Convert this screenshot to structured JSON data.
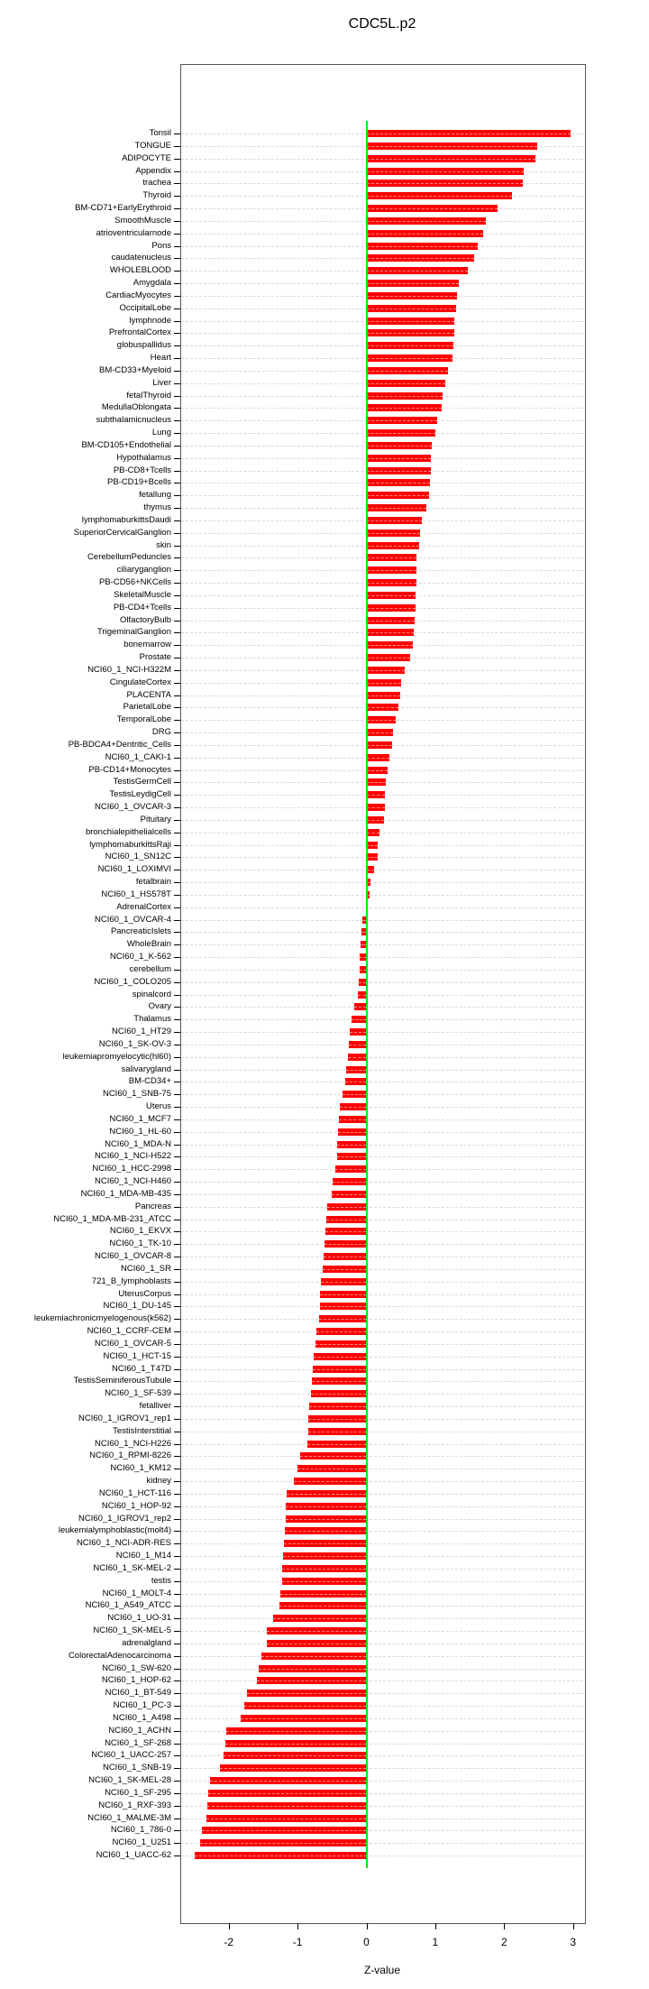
{
  "chart_data": {
    "type": "bar",
    "orientation": "horizontal",
    "title": "CDC5L.p2",
    "xlabel": "Z-value",
    "ylabel": "",
    "xlim": [
      -2.6,
      3.1
    ],
    "xticks": [
      -2,
      -1,
      0,
      1,
      2,
      3
    ],
    "grid": "dashed-horizontal-per-row",
    "legend": "none",
    "bar_color": "#ff0000",
    "zero_line_color": "#00ee00",
    "grid_color": "#d9d9d9",
    "box_color": "#555555",
    "text_color": "#000000",
    "categories": [
      "Tonsil",
      "TONGUE",
      "ADIPOCYTE",
      "Appendix",
      "trachea",
      "Thyroid",
      "BM-CD71+EarlyErythroid",
      "SmoothMuscle",
      "atrioventricularnode",
      "Pons",
      "caudatenucleus",
      "WHOLEBLOOD",
      "Amygdala",
      "CardiacMyocytes",
      "OccipitalLobe",
      "lymphnode",
      "PrefrontalCortex",
      "globuspallidus",
      "Heart",
      "BM-CD33+Myeloid",
      "Liver",
      "fetalThyroid",
      "MedullaOblongata",
      "subthalamicnucleus",
      "Lung",
      "BM-CD105+Endothelial",
      "Hypothalamus",
      "PB-CD8+Tcells",
      "PB-CD19+Bcells",
      "fetallung",
      "thymus",
      "lymphomaburkittsDaudi",
      "SuperiorCervicalGanglion",
      "skin",
      "CerebellumPeduncles",
      "ciliaryganglion",
      "PB-CD56+NKCells",
      "SkeletalMuscle",
      "PB-CD4+Tcells",
      "OlfactoryBulb",
      "TrigeminalGanglion",
      "bonemarrow",
      "Prostate",
      "NCI60_1_NCI-H322M",
      "CingulateCortex",
      "PLACENTA",
      "ParietalLobe",
      "TemporalLobe",
      "DRG",
      "PB-BDCA4+Dentritic_Cells",
      "NCI60_1_CAKI-1",
      "PB-CD14+Monocytes",
      "TestisGermCell",
      "TestisLeydigCell",
      "NCI60_1_OVCAR-3",
      "Pituitary",
      "bronchialepithelialcells",
      "lymphomaburkittsRaji",
      "NCI60_1_SN12C",
      "NCI60_1_LOXIMVI",
      "fetalbrain",
      "NCI60_1_HS578T",
      "AdrenalCortex",
      "NCI60_1_OVCAR-4",
      "PancreaticIslets",
      "WholeBrain",
      "NCI60_1_K-562",
      "cerebellum",
      "NCI60_1_COLO205",
      "spinalcord",
      "Ovary",
      "Thalamus",
      "NCI60_1_HT29",
      "NCI60_1_SK-OV-3",
      "leukemiapromyelocytic(hl60)",
      "salivarygland",
      "BM-CD34+",
      "NCI60_1_SNB-75",
      "Uterus",
      "NCI60_1_MCF7",
      "NCI60_1_HL-60",
      "NCI60_1_MDA-N",
      "NCI60_1_NCI-H522",
      "NCI60_1_HCC-2998",
      "NCI60_1_NCI-H460",
      "NCI60_1_MDA-MB-435",
      "Pancreas",
      "NCI60_1_MDA-MB-231_ATCC",
      "NCI60_1_EKVX",
      "NCI60_1_TK-10",
      "NCI60_1_OVCAR-8",
      "NCI60_1_SR",
      "721_B_lymphoblasts",
      "UterusCorpus",
      "NCI60_1_DU-145",
      "leukemiachronicmyelogenous(k562)",
      "NCI60_1_CCRF-CEM",
      "NCI60_1_OVCAR-5",
      "NCI60_1_HCT-15",
      "NCI60_1_T47D",
      "TestisSeminiferousTubule",
      "NCI60_1_SF-539",
      "fetalliver",
      "NCI60_1_IGROV1_rep1",
      "TestisInterstitial",
      "NCI60_1_NCI-H226",
      "NCI60_1_RPMI-8226",
      "NCI60_1_KM12",
      "kidney",
      "NCI60_1_HCT-116",
      "NCI60_1_HOP-92",
      "NCI60_1_IGROV1_rep2",
      "leukemialymphoblastic(molt4)",
      "NCI60_1_NCI-ADR-RES",
      "NCI60_1_M14",
      "NCI60_1_SK-MEL-2",
      "testis",
      "NCI60_1_MOLT-4",
      "NCI60_1_A549_ATCC",
      "NCI60_1_UO-31",
      "NCI60_1_SK-MEL-5",
      "adrenalgland",
      "ColorectalAdenocarcinoma",
      "NCI60_1_SW-620",
      "NCI60_1_HOP-62",
      "NCI60_1_BT-549",
      "NCI60_1_PC-3",
      "NCI60_1_A498",
      "NCI60_1_ACHN",
      "NCI60_1_SF-268",
      "NCI60_1_UACC-257",
      "NCI60_1_SNB-19",
      "NCI60_1_SK-MEL-28",
      "NCI60_1_SF-295",
      "NCI60_1_RXF-393",
      "NCI60_1_MALME-3M",
      "NCI60_1_786-0",
      "NCI60_1_U251",
      "NCI60_1_UACC-62"
    ],
    "values": [
      2.97,
      2.48,
      2.46,
      2.28,
      2.27,
      2.11,
      1.91,
      1.74,
      1.69,
      1.61,
      1.56,
      1.47,
      1.34,
      1.32,
      1.3,
      1.28,
      1.27,
      1.26,
      1.25,
      1.18,
      1.15,
      1.1,
      1.09,
      1.03,
      1.0,
      0.95,
      0.94,
      0.93,
      0.92,
      0.91,
      0.87,
      0.8,
      0.78,
      0.77,
      0.73,
      0.72,
      0.72,
      0.71,
      0.71,
      0.7,
      0.69,
      0.67,
      0.63,
      0.56,
      0.5,
      0.49,
      0.47,
      0.42,
      0.38,
      0.37,
      0.34,
      0.31,
      0.28,
      0.27,
      0.27,
      0.26,
      0.19,
      0.17,
      0.16,
      0.11,
      0.06,
      0.04,
      0.01,
      -0.06,
      -0.07,
      -0.08,
      -0.1,
      -0.1,
      -0.11,
      -0.13,
      -0.18,
      -0.22,
      -0.24,
      -0.26,
      -0.27,
      -0.29,
      -0.31,
      -0.35,
      -0.39,
      -0.4,
      -0.41,
      -0.42,
      -0.43,
      -0.45,
      -0.49,
      -0.5,
      -0.57,
      -0.58,
      -0.6,
      -0.61,
      -0.62,
      -0.64,
      -0.66,
      -0.67,
      -0.68,
      -0.69,
      -0.72,
      -0.74,
      -0.77,
      -0.78,
      -0.79,
      -0.81,
      -0.83,
      -0.85,
      -0.85,
      -0.86,
      -0.96,
      -1.0,
      -1.06,
      -1.16,
      -1.17,
      -1.17,
      -1.19,
      -1.2,
      -1.21,
      -1.22,
      -1.23,
      -1.25,
      -1.26,
      -1.36,
      -1.44,
      -1.45,
      -1.53,
      -1.57,
      -1.59,
      -1.73,
      -1.78,
      -1.83,
      -2.04,
      -2.05,
      -2.07,
      -2.13,
      -2.27,
      -2.3,
      -2.31,
      -2.32,
      -2.39,
      -2.42,
      -2.5
    ]
  }
}
